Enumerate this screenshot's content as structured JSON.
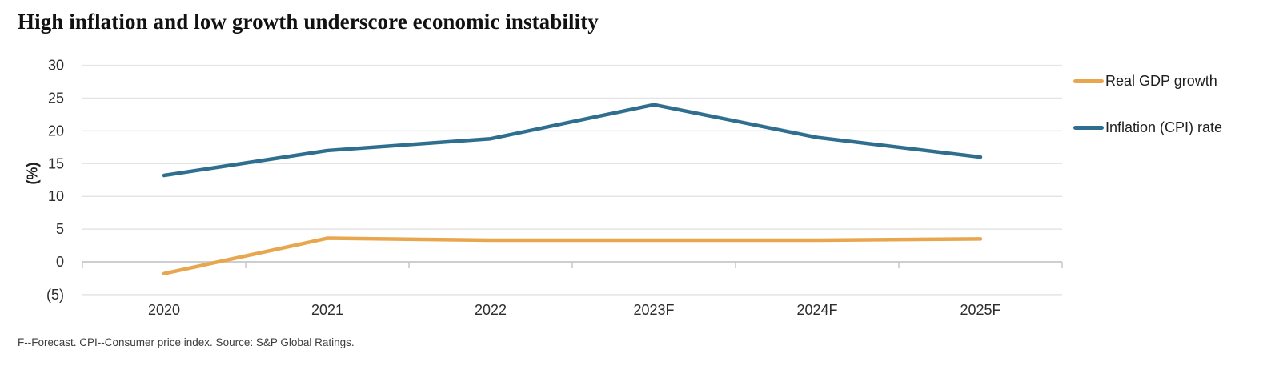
{
  "title": "High inflation and low growth underscore economic instability",
  "footnote": "F--Forecast. CPI--Consumer price index. Source: S&P Global Ratings.",
  "legend": {
    "items": [
      {
        "label": "Real GDP growth",
        "color": "#E8A64E"
      },
      {
        "label": "Inflation (CPI) rate",
        "color": "#2E6E8E"
      }
    ]
  },
  "chart_data": {
    "type": "line",
    "categories": [
      "2020",
      "2021",
      "2022",
      "2023F",
      "2024F",
      "2025F"
    ],
    "series": [
      {
        "name": "Real GDP growth",
        "color": "#E8A64E",
        "values": [
          -1.8,
          3.6,
          3.3,
          3.3,
          3.3,
          3.5
        ]
      },
      {
        "name": "Inflation (CPI) rate",
        "color": "#2E6E8E",
        "values": [
          13.2,
          17.0,
          18.8,
          24.0,
          19.0,
          16.0
        ]
      }
    ],
    "title": "High inflation and low growth underscore economic instability",
    "xlabel": "",
    "ylabel": "(%)",
    "ylim": [
      -5,
      30
    ],
    "ytick_step": 5,
    "ytick_labels": [
      "(5)",
      "0",
      "5",
      "10",
      "15",
      "20",
      "25",
      "30"
    ],
    "grid": "horizontal-only",
    "zero_axis_ticks": true,
    "legend_position": "right",
    "colors": {
      "gridline": "#e4e4e4",
      "zero_line": "#c7c7c7",
      "tick_text": "#2d2d2d"
    }
  }
}
